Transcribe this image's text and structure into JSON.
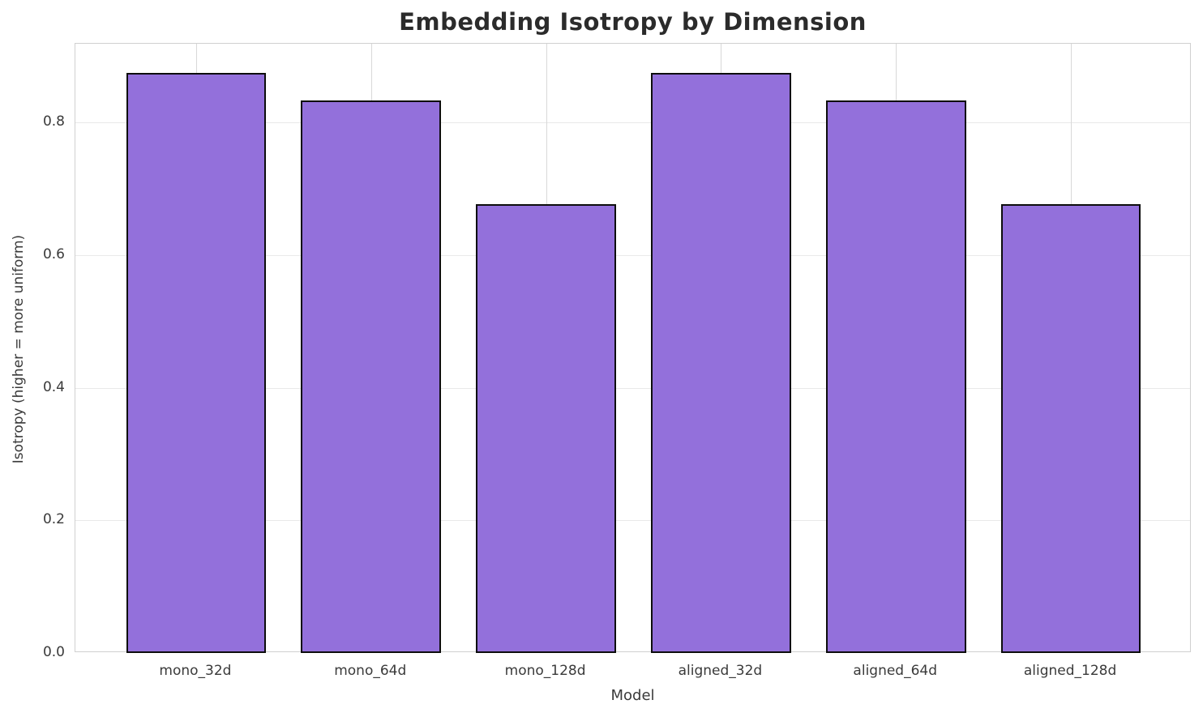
{
  "chart_data": {
    "type": "bar",
    "title": "Embedding Isotropy by Dimension",
    "xlabel": "Model",
    "ylabel": "Isotropy (higher = more uniform)",
    "categories": [
      "mono_32d",
      "mono_64d",
      "mono_128d",
      "aligned_32d",
      "aligned_64d",
      "aligned_128d"
    ],
    "values": [
      0.875,
      0.833,
      0.677,
      0.875,
      0.833,
      0.677
    ],
    "ylim": [
      0,
      0.919
    ],
    "xlim": [
      -0.69,
      5.69
    ],
    "yticks": [
      0.0,
      0.2,
      0.4,
      0.6,
      0.8
    ],
    "ytick_labels": [
      "0.0",
      "0.2",
      "0.4",
      "0.6",
      "0.8"
    ],
    "bar_width": 0.8,
    "grid": true,
    "legend": "none",
    "colors": {
      "bar_fill": "#9370DB",
      "bar_edge": "#0d0d0d",
      "grid_horizontal": "#e9e9e9",
      "grid_vertical": "#d8d8d8",
      "spine": "#d0d0d0",
      "title_text": "#2b2b2b",
      "tick_text": "#3a3a3a",
      "background": "#ffffff"
    }
  }
}
